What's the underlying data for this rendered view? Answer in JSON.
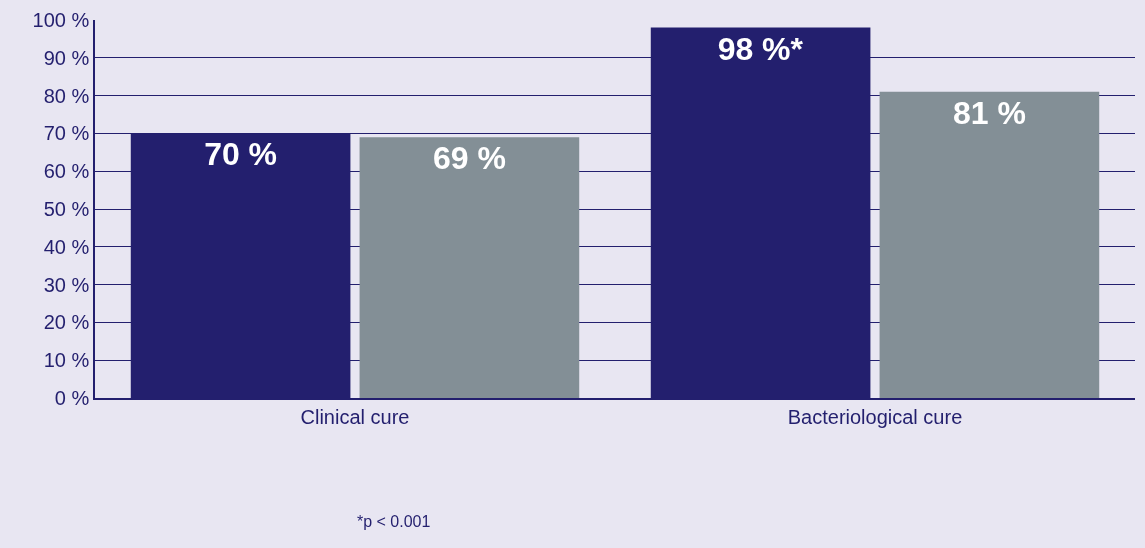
{
  "chart_data": {
    "type": "bar",
    "categories": [
      "Clinical cure",
      "Bacteriological cure"
    ],
    "series": [
      {
        "color": "#231f6e",
        "values": [
          70,
          98
        ],
        "value_labels": [
          "70 %",
          "98 %*"
        ]
      },
      {
        "color": "#838f96",
        "values": [
          69,
          81
        ],
        "value_labels": [
          "69 %",
          "81 %"
        ]
      }
    ],
    "ylim": [
      0,
      100
    ],
    "yticks": [
      {
        "value": 0,
        "label": "0 %"
      },
      {
        "value": 10,
        "label": "10 %"
      },
      {
        "value": 20,
        "label": "20 %"
      },
      {
        "value": 30,
        "label": "30 %"
      },
      {
        "value": 40,
        "label": "40 %"
      },
      {
        "value": 50,
        "label": "50 %"
      },
      {
        "value": 60,
        "label": "60 %"
      },
      {
        "value": 70,
        "label": "70 %"
      },
      {
        "value": 80,
        "label": "80 %"
      },
      {
        "value": 90,
        "label": "90 %"
      },
      {
        "value": 100,
        "label": "100 %"
      }
    ],
    "grid": "y",
    "annotations": [
      "*p < 0.001"
    ]
  }
}
